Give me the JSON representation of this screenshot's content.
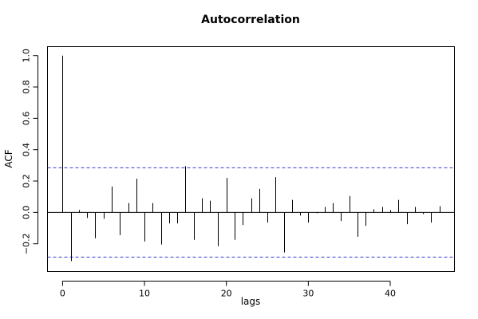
{
  "chart_data": {
    "type": "bar",
    "title": "Autocorrelation",
    "xlabel": "lags",
    "ylabel": "ACF",
    "xlim": [
      -1.84,
      47.84
    ],
    "ylim": [
      -0.377,
      1.057
    ],
    "x_ticks": [
      0,
      10,
      20,
      30,
      40
    ],
    "y_ticks": [
      -0.2,
      0.0,
      0.2,
      0.4,
      0.6,
      0.8,
      1.0
    ],
    "y_tick_labels": [
      "−0.2",
      "0.0",
      "0.2",
      "0.4",
      "0.6",
      "0.8",
      "1.0"
    ],
    "confidence_bounds": [
      0.285,
      -0.285
    ],
    "zero_line": 0,
    "grid": false,
    "colors": {
      "bars": "#000000",
      "bounds": "#3b3bd1",
      "axes": "#000000"
    },
    "lags": [
      0,
      1,
      2,
      3,
      4,
      5,
      6,
      7,
      8,
      9,
      10,
      11,
      12,
      13,
      14,
      15,
      16,
      17,
      18,
      19,
      20,
      21,
      22,
      23,
      24,
      25,
      26,
      27,
      28,
      29,
      30,
      31,
      32,
      33,
      34,
      35,
      36,
      37,
      38,
      39,
      40,
      41,
      42,
      43,
      44,
      45,
      46
    ],
    "values": [
      1.0,
      -0.31,
      0.015,
      -0.035,
      -0.165,
      -0.04,
      0.165,
      -0.145,
      0.06,
      0.215,
      -0.185,
      0.06,
      -0.205,
      -0.07,
      -0.07,
      0.295,
      -0.175,
      0.09,
      0.075,
      -0.215,
      0.22,
      -0.175,
      -0.08,
      0.09,
      0.15,
      -0.065,
      0.225,
      -0.255,
      0.08,
      -0.02,
      -0.065,
      -0.005,
      0.035,
      0.06,
      -0.055,
      0.105,
      -0.155,
      -0.085,
      0.02,
      0.035,
      0.015,
      0.08,
      -0.075,
      0.035,
      -0.01,
      -0.065,
      0.04
    ]
  }
}
